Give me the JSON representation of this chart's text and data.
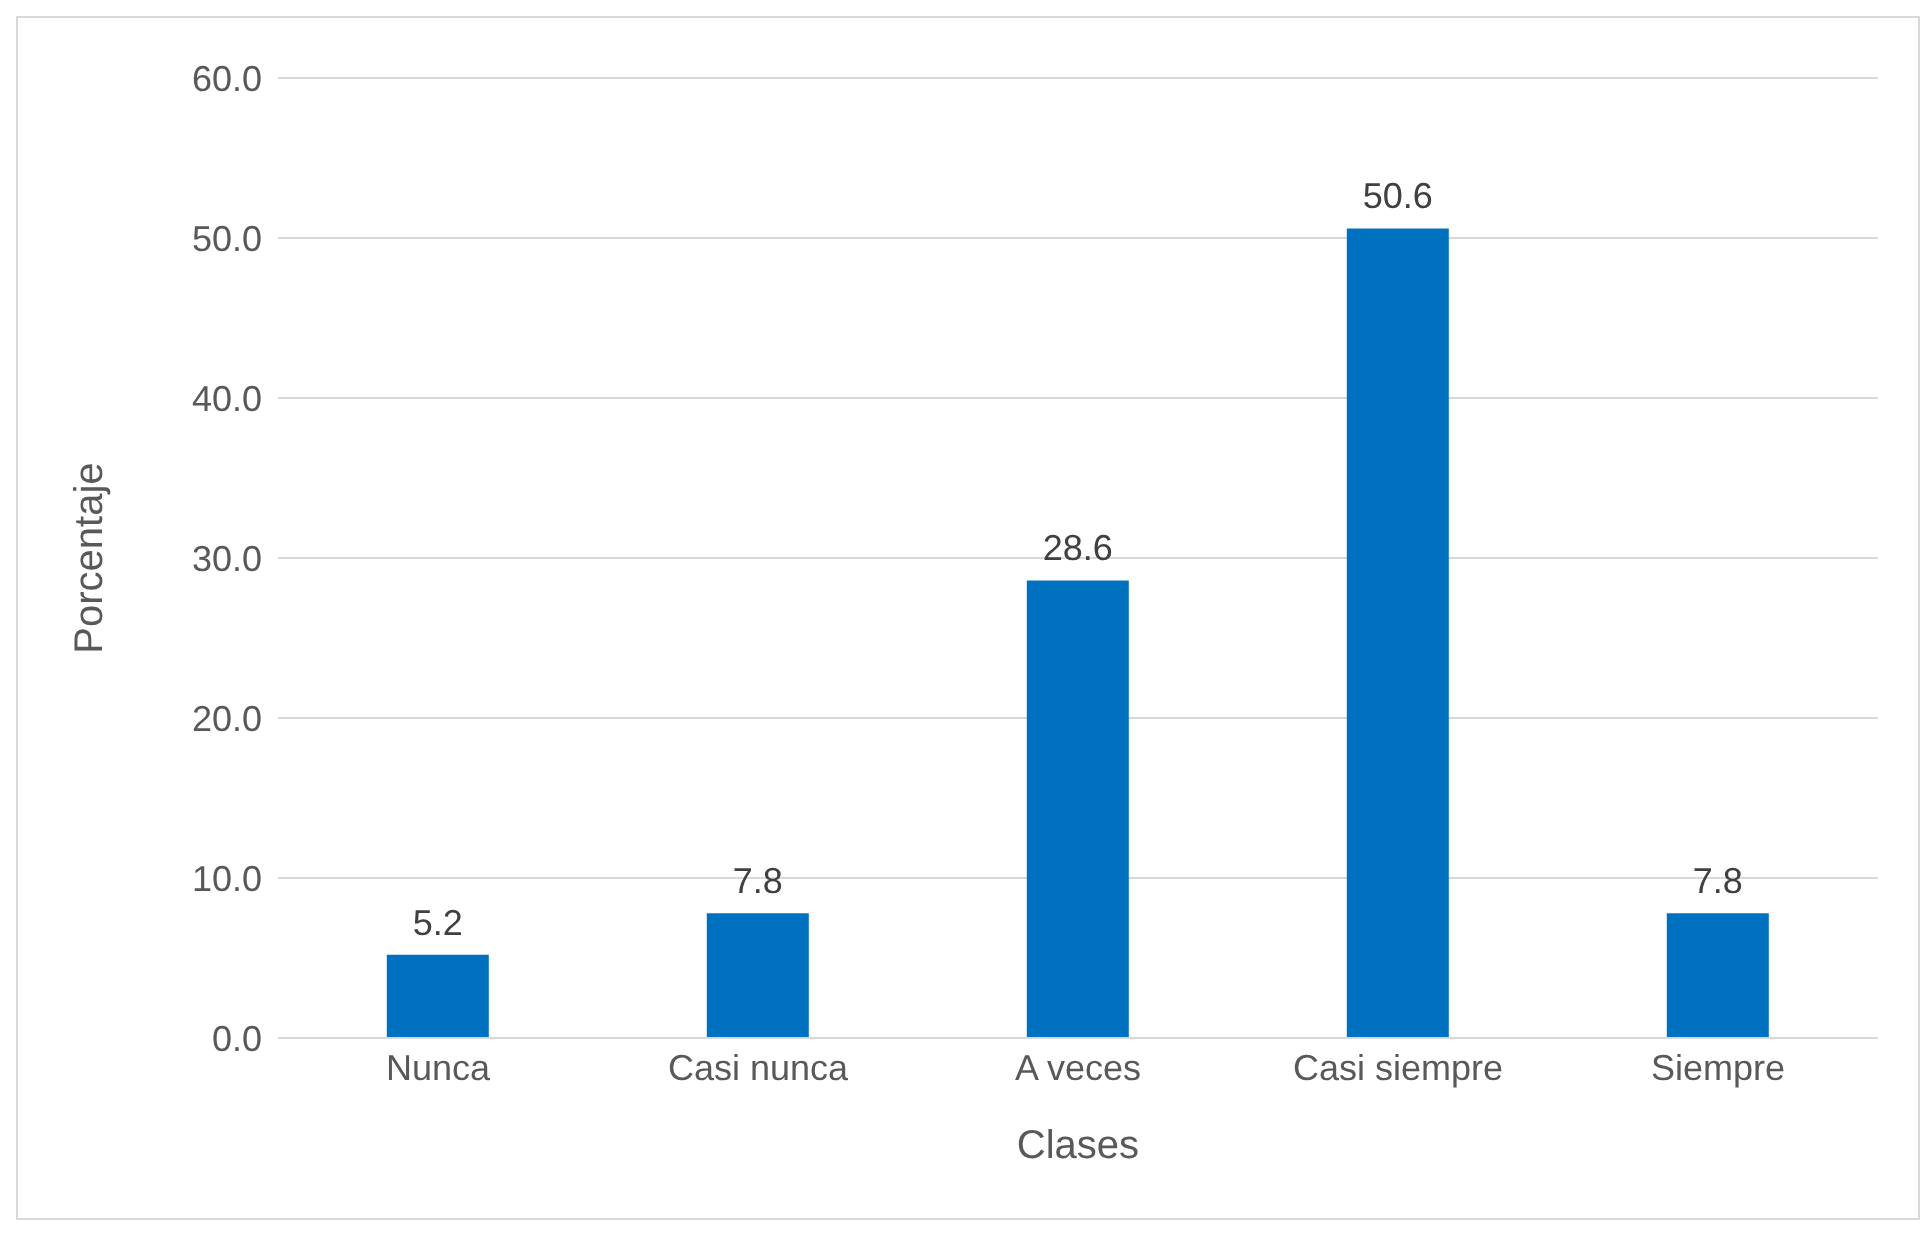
{
  "chart_data": {
    "type": "bar",
    "xlabel": "Clases",
    "ylabel": "Porcentaje",
    "categories": [
      "Nunca",
      "Casi nunca",
      "A veces",
      "Casi siempre",
      "Siempre"
    ],
    "values": [
      5.2,
      7.8,
      28.6,
      50.6,
      7.8
    ],
    "color": "#0070c0",
    "ylim": [
      0,
      60
    ],
    "yticks": [
      {
        "value": 0,
        "label": "0.0"
      },
      {
        "value": 10,
        "label": "10.0"
      },
      {
        "value": 20,
        "label": "20.0"
      },
      {
        "value": 30,
        "label": "30.0"
      },
      {
        "value": 40,
        "label": "40.0"
      },
      {
        "value": 50,
        "label": "50.0"
      },
      {
        "value": 60,
        "label": "60.0"
      }
    ],
    "grid": "y",
    "data_labels": true
  }
}
